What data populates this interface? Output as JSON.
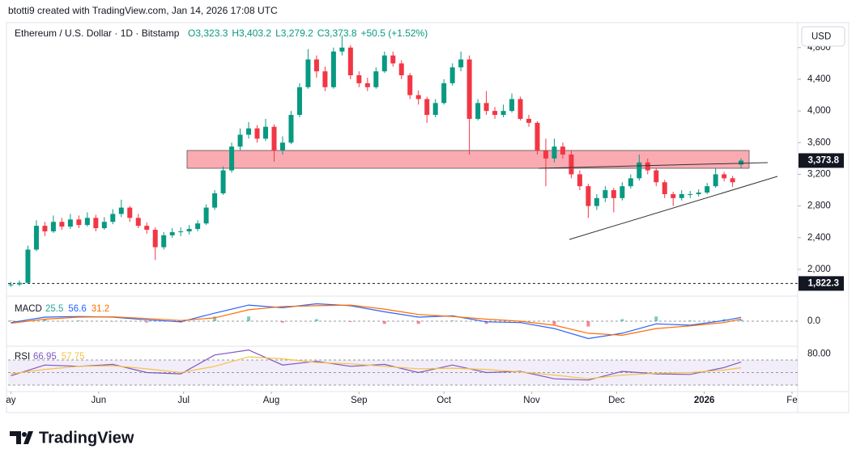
{
  "header": "btotti9 created with TradingView.com, Jan 14, 2026 17:08 UTC",
  "brand": "TradingView",
  "currency": "USD",
  "chart_data": [
    {
      "type": "candlestick",
      "title": "Ethereum / U.S. Dollar · 1D · Bitstamp",
      "legend": [
        "O3,323.3",
        "H3,403.2",
        "L3,279.2",
        "C3,373.8",
        "+50.5 (+1.52%)"
      ],
      "up_color": "#089981",
      "down_color": "#f23645",
      "x": [
        0,
        3,
        6,
        9,
        12,
        15,
        18,
        21,
        24,
        27,
        30,
        33,
        36,
        39,
        42,
        45,
        48,
        51,
        54,
        57,
        60,
        63,
        66,
        69,
        72,
        75,
        78,
        81,
        84,
        87,
        90,
        93,
        96,
        99,
        102,
        105,
        108,
        111,
        114,
        117,
        120,
        123,
        126,
        129,
        132,
        135,
        138,
        141,
        144,
        147,
        150,
        153,
        156,
        159,
        162,
        165,
        168,
        171,
        174,
        177,
        180,
        183,
        186,
        189,
        192,
        195,
        198,
        201,
        204,
        207,
        210,
        213,
        216,
        219,
        222,
        225,
        228,
        231,
        234,
        237,
        240,
        243,
        246,
        249,
        252,
        255,
        258
      ],
      "ohlc": [
        [
          1800,
          1840,
          1780,
          1810
        ],
        [
          1810,
          1860,
          1790,
          1830
        ],
        [
          1830,
          2300,
          1820,
          2250
        ],
        [
          2250,
          2620,
          2230,
          2550
        ],
        [
          2550,
          2600,
          2420,
          2480
        ],
        [
          2480,
          2680,
          2460,
          2600
        ],
        [
          2600,
          2650,
          2500,
          2540
        ],
        [
          2540,
          2700,
          2510,
          2630
        ],
        [
          2630,
          2680,
          2520,
          2560
        ],
        [
          2560,
          2720,
          2540,
          2650
        ],
        [
          2650,
          2690,
          2480,
          2520
        ],
        [
          2520,
          2660,
          2500,
          2600
        ],
        [
          2600,
          2760,
          2570,
          2700
        ],
        [
          2700,
          2880,
          2660,
          2780
        ],
        [
          2780,
          2800,
          2600,
          2650
        ],
        [
          2650,
          2700,
          2520,
          2550
        ],
        [
          2550,
          2590,
          2450,
          2500
        ],
        [
          2500,
          2530,
          2120,
          2280
        ],
        [
          2280,
          2470,
          2250,
          2430
        ],
        [
          2430,
          2520,
          2400,
          2470
        ],
        [
          2470,
          2530,
          2420,
          2480
        ],
        [
          2480,
          2560,
          2440,
          2510
        ],
        [
          2510,
          2620,
          2480,
          2580
        ],
        [
          2580,
          2820,
          2560,
          2780
        ],
        [
          2780,
          3000,
          2750,
          2960
        ],
        [
          2960,
          3300,
          2940,
          3250
        ],
        [
          3250,
          3600,
          3220,
          3550
        ],
        [
          3550,
          3780,
          3500,
          3700
        ],
        [
          3700,
          3860,
          3650,
          3780
        ],
        [
          3780,
          3820,
          3600,
          3650
        ],
        [
          3650,
          3900,
          3620,
          3800
        ],
        [
          3800,
          3830,
          3360,
          3500
        ],
        [
          3500,
          3680,
          3450,
          3600
        ],
        [
          3600,
          4000,
          3580,
          3950
        ],
        [
          3950,
          4350,
          3920,
          4300
        ],
        [
          4300,
          4780,
          4280,
          4650
        ],
        [
          4650,
          4700,
          4420,
          4500
        ],
        [
          4500,
          4560,
          4250,
          4300
        ],
        [
          4300,
          4800,
          4280,
          4750
        ],
        [
          4750,
          4950,
          4700,
          4800
        ],
        [
          4800,
          4830,
          4400,
          4450
        ],
        [
          4450,
          4500,
          4300,
          4350
        ],
        [
          4350,
          4420,
          4250,
          4300
        ],
        [
          4300,
          4550,
          4280,
          4500
        ],
        [
          4500,
          4750,
          4480,
          4700
        ],
        [
          4700,
          4750,
          4560,
          4600
        ],
        [
          4600,
          4640,
          4400,
          4450
        ],
        [
          4450,
          4480,
          4150,
          4200
        ],
        [
          4200,
          4260,
          4080,
          4150
        ],
        [
          4150,
          4180,
          3850,
          3950
        ],
        [
          3950,
          4150,
          3920,
          4100
        ],
        [
          4100,
          4400,
          4080,
          4350
        ],
        [
          4350,
          4600,
          4320,
          4550
        ],
        [
          4550,
          4750,
          4500,
          4650
        ],
        [
          4650,
          4700,
          3450,
          3900
        ],
        [
          3900,
          4150,
          3880,
          4100
        ],
        [
          4100,
          4250,
          3950,
          4000
        ],
        [
          4000,
          4050,
          3900,
          3950
        ],
        [
          3950,
          4080,
          3920,
          4000
        ],
        [
          4000,
          4220,
          3980,
          4150
        ],
        [
          4150,
          4180,
          3880,
          3900
        ],
        [
          3900,
          3950,
          3800,
          3850
        ],
        [
          3850,
          3870,
          3450,
          3500
        ],
        [
          3500,
          3650,
          3050,
          3400
        ],
        [
          3400,
          3650,
          3350,
          3550
        ],
        [
          3550,
          3600,
          3400,
          3450
        ],
        [
          3450,
          3500,
          3150,
          3200
        ],
        [
          3200,
          3250,
          3000,
          3050
        ],
        [
          3050,
          3080,
          2650,
          2800
        ],
        [
          2800,
          2950,
          2750,
          2900
        ],
        [
          2900,
          3050,
          2850,
          3000
        ],
        [
          3000,
          3030,
          2720,
          2900
        ],
        [
          2900,
          3100,
          2870,
          3050
        ],
        [
          3050,
          3200,
          3020,
          3150
        ],
        [
          3150,
          3450,
          3120,
          3350
        ],
        [
          3350,
          3400,
          3200,
          3250
        ],
        [
          3250,
          3280,
          3050,
          3100
        ],
        [
          3100,
          3130,
          2900,
          2950
        ],
        [
          2950,
          2980,
          2800,
          2900
        ],
        [
          2900,
          3000,
          2870,
          2950
        ],
        [
          2950,
          2990,
          2900,
          2950
        ],
        [
          2950,
          3010,
          2920,
          2970
        ],
        [
          2970,
          3090,
          2950,
          3050
        ],
        [
          3050,
          3280,
          3030,
          3200
        ],
        [
          3200,
          3230,
          3110,
          3150
        ],
        [
          3150,
          3180,
          3040,
          3100
        ],
        [
          3323.3,
          3403.2,
          3279.2,
          3373.8
        ]
      ],
      "xlim": [
        -1,
        278
      ],
      "xticks": [
        {
          "value": 0,
          "label": "ay"
        },
        {
          "value": 31,
          "label": "Jun"
        },
        {
          "value": 61,
          "label": "Jul"
        },
        {
          "value": 92,
          "label": "Aug"
        },
        {
          "value": 123,
          "label": "Sep"
        },
        {
          "value": 153,
          "label": "Oct"
        },
        {
          "value": 184,
          "label": "Nov"
        },
        {
          "value": 214,
          "label": "Dec"
        },
        {
          "value": 245,
          "label": "2026"
        },
        {
          "value": 276,
          "label": "Fe"
        }
      ],
      "ylim": [
        1673,
        5094
      ],
      "yticks": [
        {
          "value": 2000,
          "label": "2,000"
        },
        {
          "value": 2400,
          "label": "2,400"
        },
        {
          "value": 2800,
          "label": "2,800"
        },
        {
          "value": 3200,
          "label": "3,200"
        },
        {
          "value": 3600,
          "label": "3,600"
        },
        {
          "value": 4000,
          "label": "4,000"
        },
        {
          "value": 4400,
          "label": "4,400"
        },
        {
          "value": 4800,
          "label": "4,800"
        }
      ],
      "last_price": {
        "value": 3373.8,
        "label": "3,373.8"
      },
      "marker_line": {
        "value": 1822.3,
        "label": "1,822.3"
      }
    },
    {
      "type": "macd",
      "title": "MACD",
      "x": [
        0,
        12,
        24,
        36,
        48,
        60,
        72,
        84,
        96,
        108,
        120,
        132,
        144,
        156,
        168,
        180,
        192,
        204,
        216,
        228,
        240,
        252,
        258
      ],
      "ylim": [
        -350,
        350
      ],
      "yticks": [
        {
          "value": 0,
          "label": "0.0"
        }
      ],
      "series": [
        {
          "label": "25.5",
          "color": "#26a69a",
          "down_color": "#f23645",
          "style": "histogram",
          "values": [
            10,
            30,
            10,
            -5,
            -20,
            -20,
            70,
            70,
            -20,
            30,
            -10,
            -40,
            -40,
            10,
            -40,
            -20,
            -50,
            -80,
            30,
            70,
            10,
            30,
            25.5
          ]
        },
        {
          "label": "56.6",
          "color": "#2962ff",
          "style": "line",
          "values": [
            -20,
            60,
            70,
            60,
            20,
            -10,
            120,
            240,
            200,
            260,
            230,
            140,
            60,
            80,
            -10,
            -20,
            -110,
            -260,
            -180,
            -40,
            -60,
            10,
            56.6
          ]
        },
        {
          "label": "31.2",
          "color": "#ff6d00",
          "style": "line",
          "values": [
            -30,
            30,
            60,
            65,
            40,
            10,
            50,
            170,
            220,
            230,
            240,
            180,
            100,
            70,
            30,
            0,
            -60,
            -180,
            -210,
            -110,
            -70,
            -20,
            31.2
          ]
        }
      ]
    },
    {
      "type": "rsi",
      "title": "RSI",
      "x": [
        0,
        12,
        24,
        36,
        48,
        60,
        72,
        84,
        96,
        108,
        120,
        132,
        144,
        156,
        168,
        180,
        192,
        204,
        216,
        228,
        240,
        252,
        258
      ],
      "ylim": [
        27.4,
        89.4
      ],
      "yticks": [
        {
          "value": 80,
          "label": "80.00"
        }
      ],
      "levels": [
        30,
        50,
        70
      ],
      "series": [
        {
          "label": "66.95",
          "color": "#7e57c2",
          "values": [
            45,
            62,
            60,
            63,
            50,
            48,
            78,
            86,
            62,
            68,
            60,
            63,
            50,
            62,
            50,
            52,
            40,
            38,
            52,
            48,
            47,
            58,
            66.95
          ]
        },
        {
          "label": "57.75",
          "color": "#f7c244",
          "values": [
            48,
            55,
            60,
            61,
            56,
            50,
            60,
            75,
            72,
            66,
            64,
            60,
            56,
            57,
            55,
            51,
            46,
            40,
            46,
            49,
            50,
            54,
            57.75
          ]
        }
      ]
    }
  ]
}
